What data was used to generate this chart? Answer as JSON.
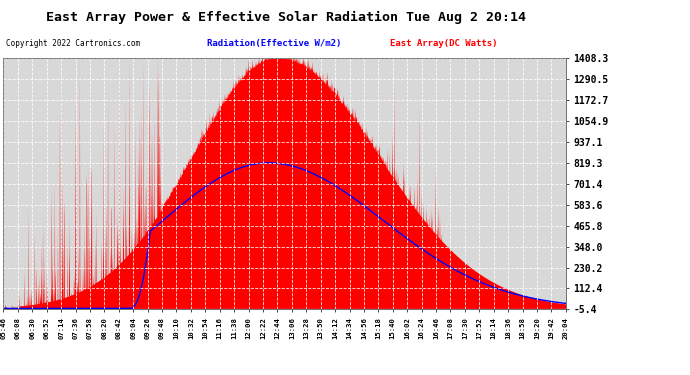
{
  "title": "East Array Power & Effective Solar Radiation Tue Aug 2 20:14",
  "copyright": "Copyright 2022 Cartronics.com",
  "legend_radiation": "Radiation(Effective W/m2)",
  "legend_east": "East Array(DC Watts)",
  "ylabel_values": [
    1408.3,
    1290.5,
    1172.7,
    1054.9,
    937.1,
    819.3,
    701.4,
    583.6,
    465.8,
    348.0,
    230.2,
    112.4,
    -5.4
  ],
  "ymin": -5.4,
  "ymax": 1408.3,
  "background_color": "#ffffff",
  "plot_bg_color": "#d8d8d8",
  "grid_color": "#ffffff",
  "radiation_color": "#0000ff",
  "east_array_color": "#ff0000",
  "x_tick_labels": [
    "05:46",
    "06:08",
    "06:30",
    "06:52",
    "07:14",
    "07:36",
    "07:58",
    "08:20",
    "08:42",
    "09:04",
    "09:26",
    "09:48",
    "10:10",
    "10:32",
    "10:54",
    "11:16",
    "11:38",
    "12:00",
    "12:22",
    "12:44",
    "13:06",
    "13:28",
    "13:50",
    "14:12",
    "14:34",
    "14:56",
    "15:18",
    "15:40",
    "16:02",
    "16:24",
    "16:46",
    "17:08",
    "17:30",
    "17:52",
    "18:14",
    "18:36",
    "18:58",
    "19:20",
    "19:42",
    "20:04"
  ]
}
